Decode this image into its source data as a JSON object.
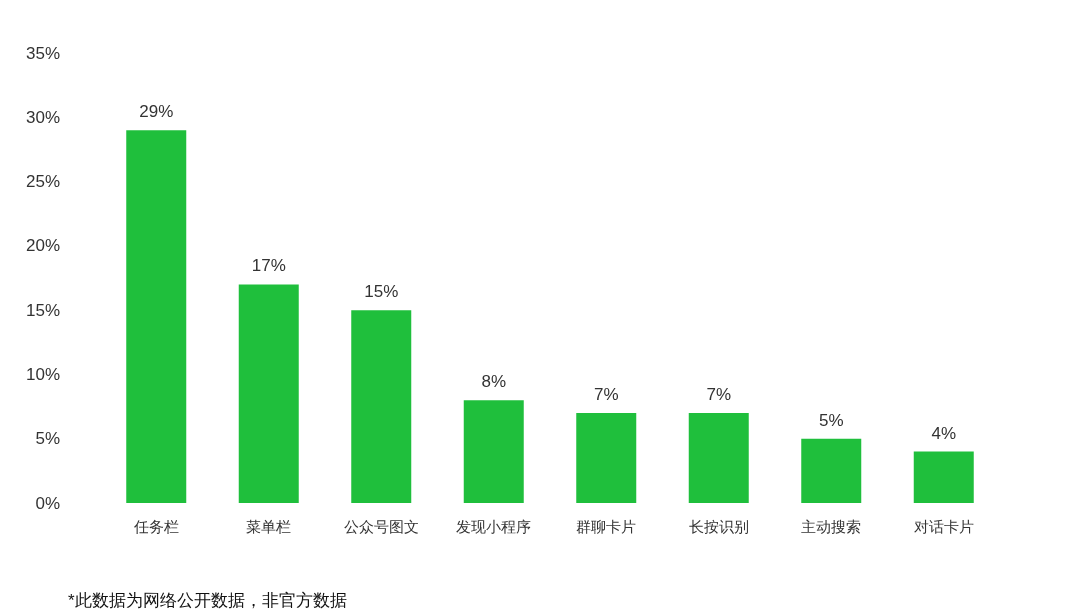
{
  "chart_data": {
    "type": "bar",
    "categories": [
      "任务栏",
      "菜单栏",
      "公众号图文",
      "发现小程序",
      "群聊卡片",
      "长按识别",
      "主动搜索",
      "对话卡片"
    ],
    "values": [
      29,
      17,
      15,
      8,
      7,
      7,
      5,
      4
    ],
    "value_labels": [
      "29%",
      "17%",
      "15%",
      "8%",
      "7%",
      "7%",
      "5%",
      "4%"
    ],
    "color": "#1fbf3c",
    "ylim": [
      0,
      35
    ],
    "yticks": [
      {
        "value": 0,
        "label": "0%"
      },
      {
        "value": 5,
        "label": "5%"
      },
      {
        "value": 10,
        "label": "10%"
      },
      {
        "value": 15,
        "label": "15%"
      },
      {
        "value": 20,
        "label": "20%"
      },
      {
        "value": 25,
        "label": "25%"
      },
      {
        "value": 30,
        "label": "30%"
      },
      {
        "value": 35,
        "label": "35%"
      }
    ],
    "annotations": [
      "*此数据为网络公开数据，非官方数据"
    ]
  }
}
